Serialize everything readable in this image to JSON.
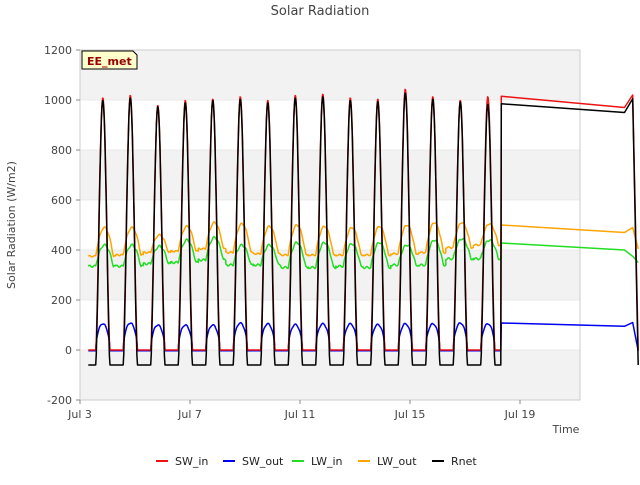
{
  "chart_data": {
    "type": "line",
    "title": "Solar Radiation",
    "xlabel": "Time",
    "ylabel": "Solar Radiation (W/m2)",
    "badge": "EE_met",
    "x_start": "2024-07-03",
    "x_ticks": [
      "Jul 3",
      "Jul 7",
      "Jul 11",
      "Jul 15",
      "Jul 19"
    ],
    "ylim": [
      -200,
      1200
    ],
    "yticks": [
      -200,
      0,
      200,
      400,
      600,
      800,
      1000,
      1200
    ],
    "grid": "horizontal banded",
    "legend_position": "bottom",
    "daily_series": {
      "days": [
        "Jul 3",
        "Jul 4",
        "Jul 5",
        "Jul 6",
        "Jul 7",
        "Jul 8",
        "Jul 9",
        "Jul 10",
        "Jul 11",
        "Jul 12",
        "Jul 13",
        "Jul 14",
        "Jul 15",
        "Jul 16",
        "Jul 17"
      ],
      "sw_in_peak_W_m2": [
        1010,
        1020,
        980,
        1000,
        1005,
        1015,
        1000,
        1020,
        1025,
        1010,
        1005,
        1045,
        1015,
        1000,
        1015
      ],
      "sw_out_peak_W_m2": [
        105,
        108,
        100,
        100,
        100,
        108,
        105,
        102,
        105,
        105,
        102,
        105,
        105,
        108,
        105
      ],
      "lw_in_range_W_m2": [
        [
          335,
          420
        ],
        [
          335,
          420
        ],
        [
          345,
          415
        ],
        [
          350,
          440
        ],
        [
          360,
          450
        ],
        [
          340,
          420
        ],
        [
          340,
          420
        ],
        [
          330,
          430
        ],
        [
          330,
          430
        ],
        [
          335,
          425
        ],
        [
          330,
          430
        ],
        [
          340,
          420
        ],
        [
          340,
          440
        ],
        [
          365,
          445
        ],
        [
          365,
          440
        ]
      ],
      "lw_out_range_W_m2": [
        [
          375,
          490
        ],
        [
          380,
          490
        ],
        [
          390,
          460
        ],
        [
          395,
          495
        ],
        [
          405,
          510
        ],
        [
          390,
          505
        ],
        [
          385,
          495
        ],
        [
          380,
          500
        ],
        [
          380,
          495
        ],
        [
          380,
          490
        ],
        [
          380,
          495
        ],
        [
          385,
          500
        ],
        [
          390,
          510
        ],
        [
          410,
          510
        ],
        [
          420,
          505
        ]
      ],
      "rnet_peak_W_m2": [
        1000,
        1010,
        975,
        990,
        1000,
        1005,
        990,
        1010,
        1015,
        1000,
        995,
        1030,
        1005,
        995,
        985
      ],
      "rnet_night_W_m2": -60
    },
    "series": [
      {
        "name": "SW_in",
        "color": "#ee1111"
      },
      {
        "name": "SW_out",
        "color": "#0000ee"
      },
      {
        "name": "LW_in",
        "color": "#22dd22"
      },
      {
        "name": "LW_out",
        "color": "#ffa500"
      },
      {
        "name": "Rnet",
        "color": "#000000"
      }
    ]
  }
}
